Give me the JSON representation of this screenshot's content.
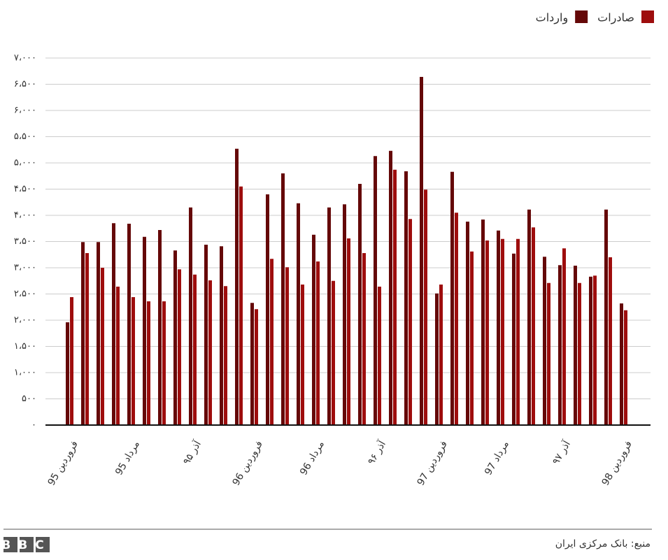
{
  "chart_data": {
    "type": "bar",
    "categories": [
      "فروردین 95",
      null,
      null,
      null,
      "مرداد 95",
      null,
      null,
      null,
      "آذر ۹۵",
      null,
      null,
      null,
      "فروردین 96",
      null,
      null,
      null,
      "مرداد 96",
      null,
      null,
      null,
      "آذر ۹۶",
      null,
      null,
      null,
      "فروردین 97",
      null,
      null,
      null,
      "مرداد 97",
      null,
      null,
      null,
      "آذر ۹۷",
      null,
      null,
      null,
      "فروردین 98"
    ],
    "series": [
      {
        "name": "واردات",
        "color": "#650808",
        "values": [
          1960,
          3490,
          3490,
          3850,
          3840,
          3590,
          3720,
          3330,
          4150,
          3440,
          3410,
          5270,
          2330,
          4400,
          4800,
          4230,
          3630,
          4150,
          4210,
          4600,
          5130,
          5230,
          4840,
          6640,
          2510,
          4830,
          3880,
          3920,
          3710,
          3270,
          4110,
          3210,
          3050,
          3040,
          2830,
          4110,
          2320
        ]
      },
      {
        "name": "صادرات",
        "color": "#9e0d0d",
        "values": [
          2440,
          3280,
          3000,
          2640,
          2440,
          2360,
          2360,
          2970,
          2870,
          2760,
          2650,
          4550,
          2210,
          3170,
          3010,
          2680,
          3120,
          2750,
          3560,
          3280,
          2640,
          4870,
          3930,
          4490,
          2680,
          4050,
          3310,
          3520,
          3550,
          3550,
          3770,
          2710,
          3370,
          2710,
          2850,
          3200,
          2190
        ]
      }
    ],
    "ylim": [
      0,
      7000
    ],
    "yticks": [
      {
        "value": 0,
        "label": "۰"
      },
      {
        "value": 500,
        "label": "۵۰۰"
      },
      {
        "value": 1000,
        "label": "۱،۰۰۰"
      },
      {
        "value": 1500,
        "label": "۱،۵۰۰"
      },
      {
        "value": 2000,
        "label": "۲،۰۰۰"
      },
      {
        "value": 2500,
        "label": "۲،۵۰۰"
      },
      {
        "value": 3000,
        "label": "۳،۰۰۰"
      },
      {
        "value": 3500,
        "label": "۳،۵۰۰"
      },
      {
        "value": 4000,
        "label": "۴،۰۰۰"
      },
      {
        "value": 4500,
        "label": "۴،۵۰۰"
      },
      {
        "value": 5000,
        "label": "۵،۰۰۰"
      },
      {
        "value": 5500,
        "label": "۵،۵۰۰"
      },
      {
        "value": 6000,
        "label": "۶،۰۰۰"
      },
      {
        "value": 6500,
        "label": "۶،۵۰۰"
      },
      {
        "value": 7000,
        "label": "۷،۰۰۰"
      }
    ],
    "grid": true,
    "legend": "top-right",
    "source": "منبع: بانک مرکزی ایران",
    "logo": "BBC"
  }
}
